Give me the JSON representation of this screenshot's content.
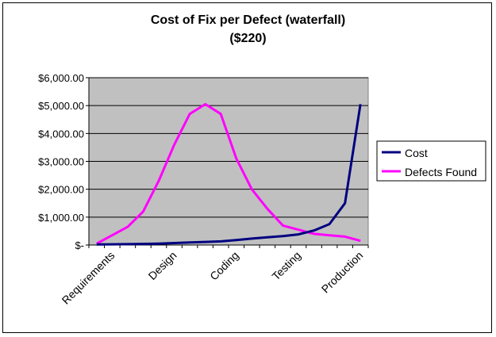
{
  "chart_data": {
    "type": "line",
    "title": "Cost of Fix per Defect (waterfall)",
    "subtitle": "($220)",
    "xlabel": "",
    "ylabel": "",
    "ylim": [
      0,
      6000
    ],
    "y_ticks": [
      0,
      1000,
      2000,
      3000,
      4000,
      5000,
      6000
    ],
    "y_tick_labels": [
      "$-",
      "$1,000.00",
      "$2,000.00",
      "$3,000.00",
      "$4,000.00",
      "$5,000.00",
      "$6,000.00"
    ],
    "grid": true,
    "x_points": 18,
    "category_labels": [
      {
        "label": "Requirements",
        "at": 1
      },
      {
        "label": "Design",
        "at": 5
      },
      {
        "label": "Coding",
        "at": 9
      },
      {
        "label": "Testing",
        "at": 13
      },
      {
        "label": "Production",
        "at": 17
      }
    ],
    "series": [
      {
        "name": "Cost",
        "color": "#000080",
        "values": [
          20,
          25,
          30,
          40,
          50,
          70,
          90,
          110,
          130,
          180,
          230,
          280,
          320,
          380,
          520,
          750,
          1500,
          5050
        ]
      },
      {
        "name": "Defects Found",
        "color": "#ff00ff",
        "values": [
          50,
          350,
          650,
          1200,
          2300,
          3600,
          4700,
          5050,
          4700,
          3100,
          2000,
          1300,
          700,
          550,
          400,
          350,
          300,
          150
        ]
      }
    ],
    "legend_position": "right"
  }
}
